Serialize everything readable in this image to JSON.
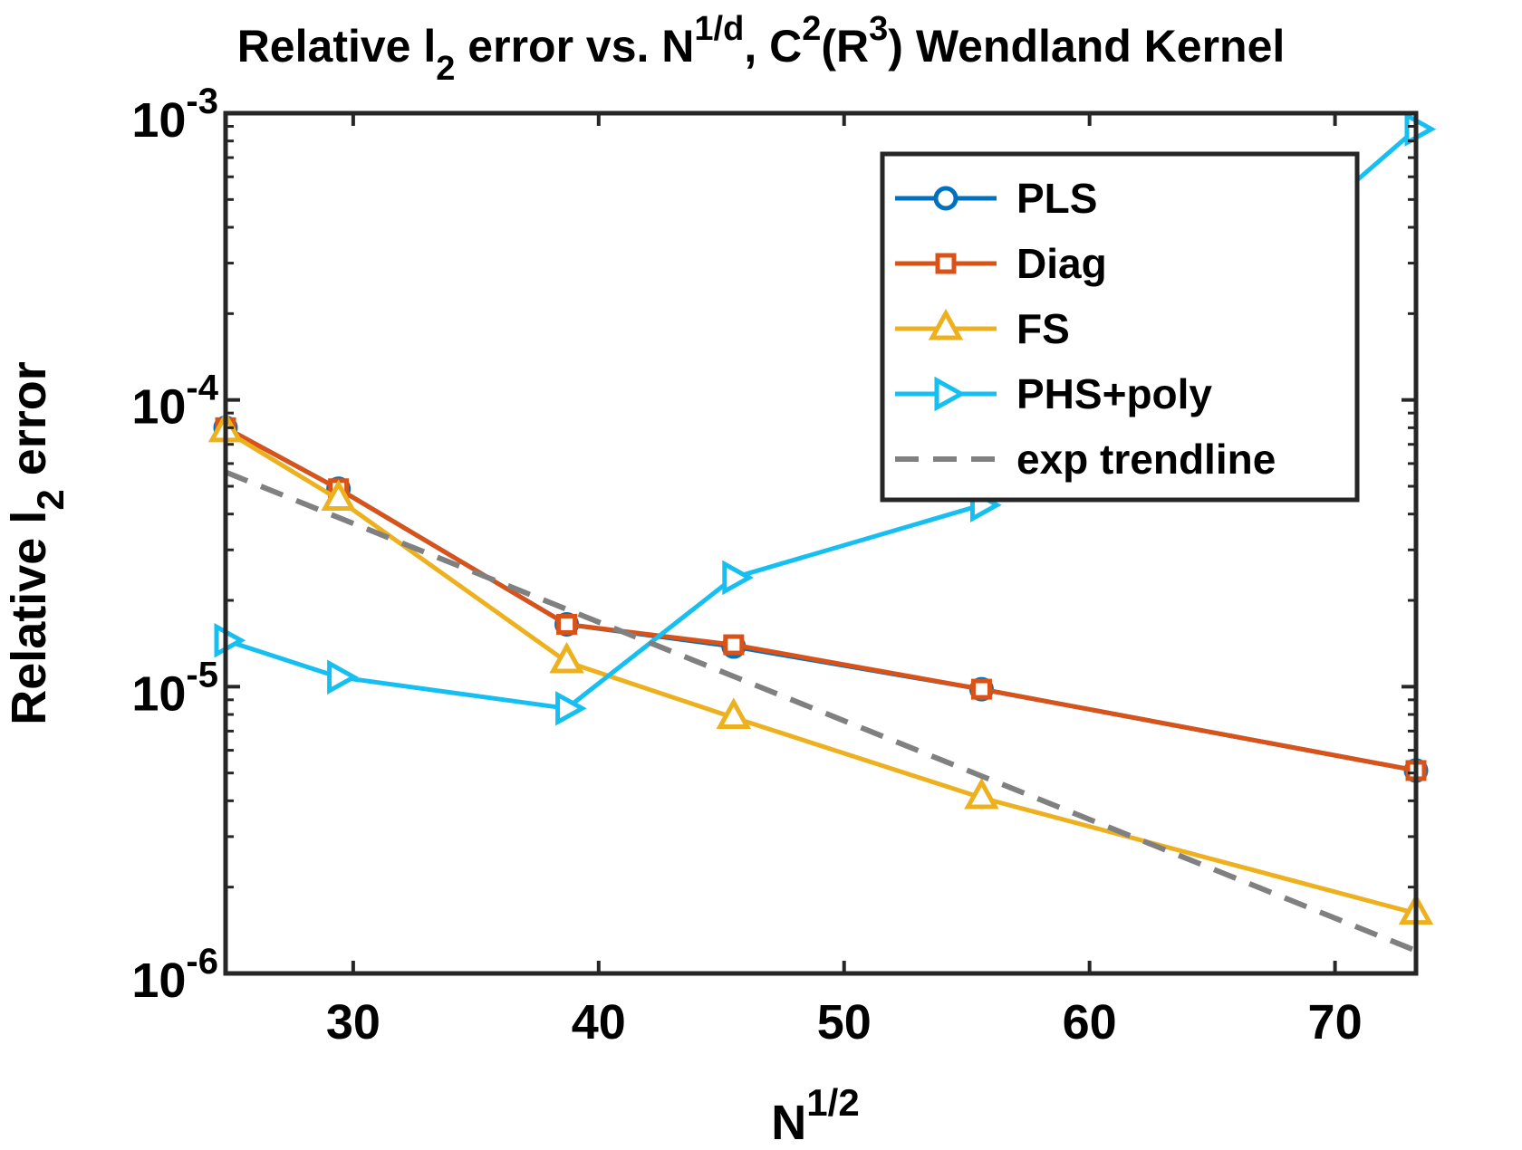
{
  "chart_data": {
    "type": "line",
    "title": {
      "parts": [
        "Relative l",
        "2",
        " error vs. N",
        "1/d",
        ", C",
        "2",
        "(R",
        "3",
        ") Wendland Kernel"
      ]
    },
    "xlabel": {
      "base": "N",
      "sup": "1/2"
    },
    "ylabel": {
      "pre": "Relative l",
      "sub": "2",
      "post": " error"
    },
    "xlim": [
      24.8,
      73.3
    ],
    "ylim": [
      1e-06,
      0.001
    ],
    "yscale": "log",
    "xticks": [
      30,
      40,
      50,
      60,
      70
    ],
    "xtick_labels": [
      "30",
      "40",
      "50",
      "60",
      "70"
    ],
    "yticks": [
      {
        "value": 1e-06,
        "base": "10",
        "exp": "-6"
      },
      {
        "value": 1e-05,
        "base": "10",
        "exp": "-5"
      },
      {
        "value": 0.0001,
        "base": "10",
        "exp": "-4"
      },
      {
        "value": 0.001,
        "base": "10",
        "exp": "-3"
      }
    ],
    "grid": false,
    "legend_position": "top-right",
    "series": [
      {
        "name": "PLS",
        "color": "#0072BD",
        "marker": "circle",
        "x": [
          24.8,
          29.4,
          38.7,
          45.5,
          55.6,
          73.3
        ],
        "y": [
          8e-05,
          4.9e-05,
          1.65e-05,
          1.38e-05,
          9.8e-06,
          5.1e-06
        ]
      },
      {
        "name": "Diag",
        "color": "#D95319",
        "marker": "square",
        "x": [
          24.8,
          29.4,
          38.7,
          45.5,
          55.6,
          73.3
        ],
        "y": [
          8e-05,
          4.9e-05,
          1.65e-05,
          1.4e-05,
          9.8e-06,
          5.1e-06
        ]
      },
      {
        "name": "FS",
        "color": "#EDB120",
        "marker": "triangle-up",
        "x": [
          24.8,
          29.4,
          38.7,
          45.5,
          55.6,
          73.3
        ],
        "y": [
          7.8e-05,
          4.5e-05,
          1.22e-05,
          7.8e-06,
          4.1e-06,
          1.62e-06
        ]
      },
      {
        "name": "PHS+poly",
        "color": "#16BFF2",
        "marker": "triangle-right",
        "x": [
          24.8,
          29.4,
          38.7,
          45.5,
          55.6,
          73.3
        ],
        "y": [
          1.45e-05,
          1.08e-05,
          8.4e-06,
          2.4e-05,
          4.3e-05,
          0.00088
        ]
      },
      {
        "name": "exp trendline",
        "color": "#808080",
        "marker": "none",
        "dashed": true,
        "x": [
          24.8,
          73.3
        ],
        "y": [
          5.6e-05,
          1.2e-06
        ]
      }
    ]
  }
}
